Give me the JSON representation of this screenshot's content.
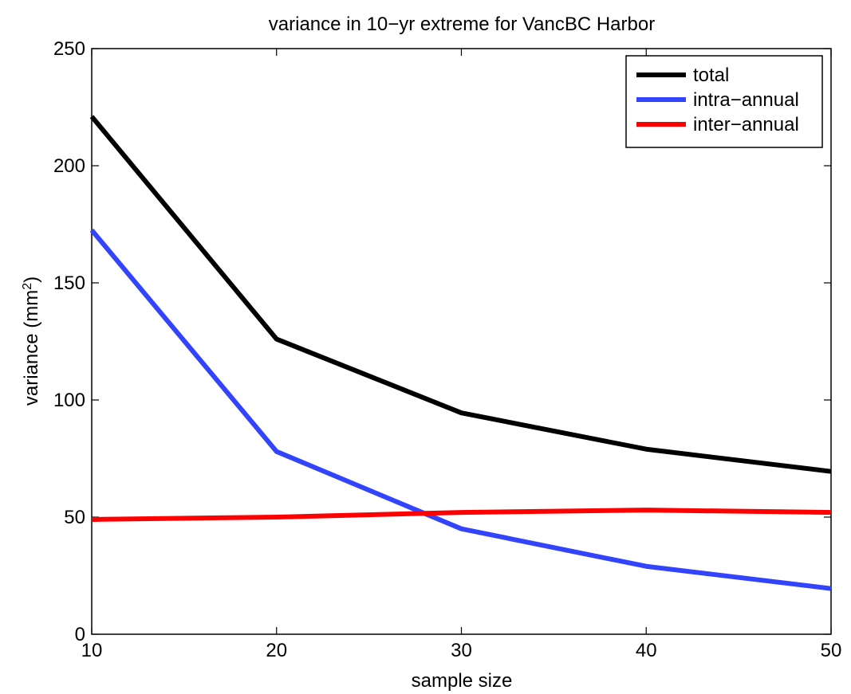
{
  "chart_data": {
    "type": "line",
    "title": "variance in 10−yr extreme for VancBC Harbor",
    "xlabel": "sample size",
    "ylabel_main": "variance (mm",
    "ylabel_sup": "2",
    "ylabel_close": ")",
    "xlim": [
      10,
      50
    ],
    "ylim": [
      0,
      250
    ],
    "xticks": [
      10,
      20,
      30,
      40,
      50
    ],
    "yticks": [
      0,
      50,
      100,
      150,
      200,
      250
    ],
    "grid": false,
    "legend_position": "top-right",
    "x": [
      10,
      20,
      30,
      40,
      50
    ],
    "series": [
      {
        "name": "total",
        "color": "#000000",
        "values": [
          221,
          126,
          94.5,
          79,
          69.5
        ]
      },
      {
        "name": "intra−annual",
        "color": "#3344ff",
        "values": [
          172.5,
          78,
          45,
          29,
          19.5
        ]
      },
      {
        "name": "inter−annual",
        "color": "#ff0000",
        "values": [
          49,
          50,
          52,
          53,
          52
        ]
      }
    ]
  }
}
